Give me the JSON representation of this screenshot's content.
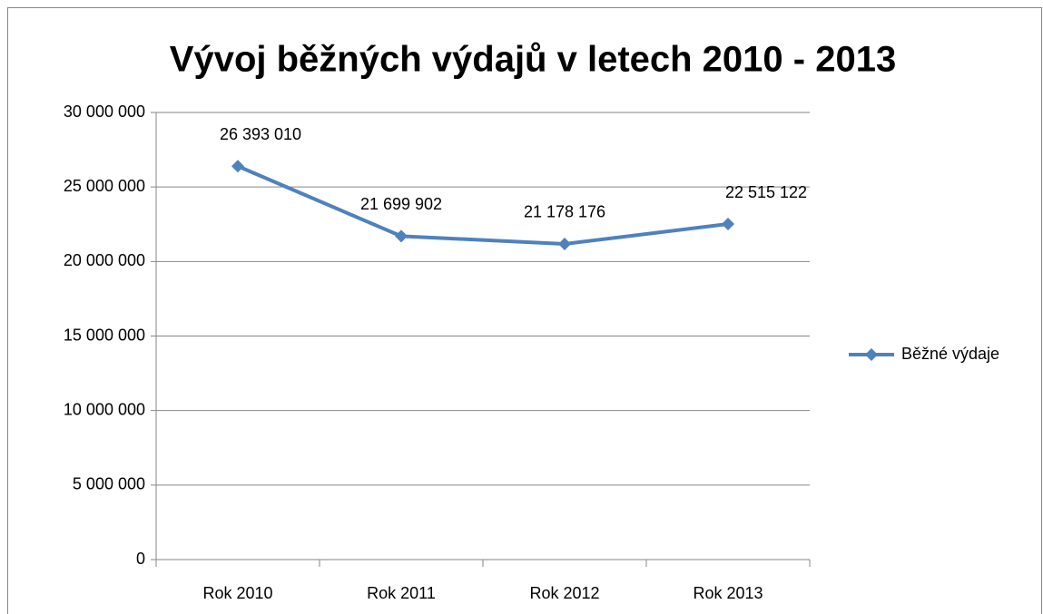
{
  "chart_data": {
    "type": "line",
    "title": "Vývoj běžných výdajů v letech 2010 - 2013",
    "categories": [
      "Rok 2010",
      "Rok 2011",
      "Rok 2012",
      "Rok 2013"
    ],
    "series": [
      {
        "name": "Běžné výdaje",
        "color": "#4f81bd",
        "values": [
          26393010,
          21699902,
          21178176,
          22515122
        ],
        "value_labels": [
          "26 393 010",
          "21 699 902",
          "21 178 176",
          "22 515 122"
        ]
      }
    ],
    "ylim": [
      0,
      30000000
    ],
    "yticks": [
      0,
      {
        "value": 5000000,
        "label": "5 000 000"
      },
      {
        "value": 10000000,
        "label": "10 000 000"
      },
      {
        "value": 15000000,
        "label": "15 000 000"
      },
      {
        "value": 20000000,
        "label": "20 000 000"
      },
      {
        "value": 25000000,
        "label": "25 000 000"
      },
      {
        "value": 30000000,
        "label": "30 000 000"
      }
    ],
    "grid": true,
    "legend": "right"
  }
}
